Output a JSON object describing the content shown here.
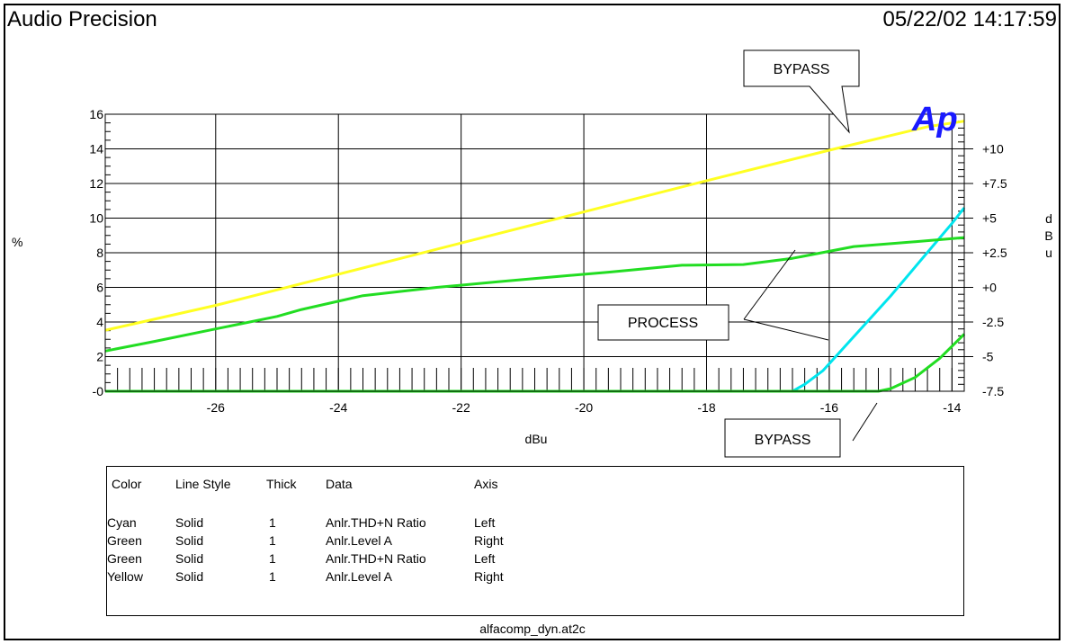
{
  "header": {
    "app_title": "Audio Precision",
    "timestamp": "05/22/02 14:17:59",
    "logo": "Ap"
  },
  "chart_data": {
    "type": "line",
    "xlabel": "dBu",
    "ylabel_left": "%",
    "ylabel_right": "dBu",
    "xlim": [
      -27.8,
      -13.8
    ],
    "ylim_left": [
      0,
      16
    ],
    "ylim_right": [
      -7.5,
      12.5
    ],
    "x_ticks": [
      -26,
      -24,
      -22,
      -20,
      -18,
      -16,
      -14
    ],
    "y_left_ticks": [
      "-0",
      "2",
      "4",
      "6",
      "8",
      "10",
      "12",
      "14",
      "16"
    ],
    "y_right_ticks": [
      "-7.5",
      "-5",
      "-2.5",
      "+0",
      "+2.5",
      "+5",
      "+7.5",
      "+10"
    ],
    "grid": true,
    "series": [
      {
        "color": "#00e5ee",
        "axis": "left",
        "points": [
          [
            -27.8,
            0
          ],
          [
            -16.6,
            0
          ],
          [
            -16.4,
            0.4
          ],
          [
            -16.1,
            1.2
          ],
          [
            -15.0,
            5.5
          ],
          [
            -14.0,
            9.7
          ],
          [
            -13.8,
            10.6
          ]
        ]
      },
      {
        "color": "#22dd22",
        "axis": "right",
        "points": [
          [
            -27.8,
            -4.6
          ],
          [
            -27,
            -3.9
          ],
          [
            -26,
            -3.0
          ],
          [
            -25,
            -2.1
          ],
          [
            -24.6,
            -1.6
          ],
          [
            -23.6,
            -0.6
          ],
          [
            -23,
            -0.3
          ],
          [
            -22.4,
            0
          ],
          [
            -21.4,
            0.4
          ],
          [
            -20.4,
            0.8
          ],
          [
            -19.6,
            1.1
          ],
          [
            -18.4,
            1.6
          ],
          [
            -17.4,
            1.65
          ],
          [
            -16.6,
            2.1
          ],
          [
            -15.6,
            2.95
          ],
          [
            -14.6,
            3.3
          ],
          [
            -13.8,
            3.6
          ]
        ]
      },
      {
        "color": "#22dd22",
        "axis": "left",
        "points": [
          [
            -27.8,
            0
          ],
          [
            -15.2,
            0
          ],
          [
            -15.0,
            0.15
          ],
          [
            -14.6,
            0.8
          ],
          [
            -14.2,
            1.9
          ],
          [
            -13.8,
            3.3
          ]
        ]
      },
      {
        "color": "#ffff22",
        "axis": "right",
        "points": [
          [
            -27.8,
            -3.1
          ],
          [
            -26,
            -1.3
          ],
          [
            -24,
            0.95
          ],
          [
            -22,
            3.2
          ],
          [
            -20,
            5.45
          ],
          [
            -18,
            7.7
          ],
          [
            -16,
            9.9
          ],
          [
            -14.4,
            11.6
          ],
          [
            -13.8,
            12.0
          ]
        ]
      }
    ],
    "annotations": [
      {
        "text": "BYPASS"
      },
      {
        "text": "PROCESS"
      },
      {
        "text": "BYPASS"
      }
    ]
  },
  "legend": {
    "headers": [
      "Color",
      "Line Style",
      "Thick",
      "Data",
      "Axis"
    ],
    "rows": [
      [
        "Cyan",
        "Solid",
        "1",
        "Anlr.THD+N Ratio",
        "Left"
      ],
      [
        "Green",
        "Solid",
        "1",
        "Anlr.Level A",
        "Right"
      ],
      [
        "Green",
        "Solid",
        "1",
        "Anlr.THD+N Ratio",
        "Left"
      ],
      [
        "Yellow",
        "Solid",
        "1",
        "Anlr.Level A",
        "Right"
      ]
    ]
  },
  "footer": {
    "filename": "alfacomp_dyn.at2c"
  },
  "colors": {
    "logo": "#1a1aff",
    "cyan": "#00e5ee",
    "green": "#22dd22",
    "yellow": "#ffff22"
  }
}
